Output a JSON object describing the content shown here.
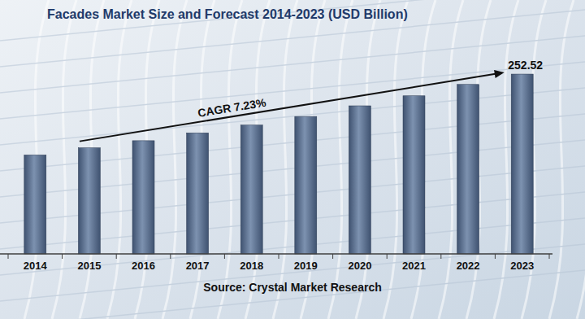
{
  "chart_data": {
    "type": "bar",
    "title": "Facades Market Size and Forecast 2014-2023 (USD Billion)",
    "categories": [
      "2014",
      "2015",
      "2016",
      "2017",
      "2018",
      "2019",
      "2020",
      "2021",
      "2022",
      "2023"
    ],
    "values": [
      139,
      149,
      159,
      170,
      181,
      193,
      208,
      222,
      238,
      252.52
    ],
    "value_labels": [
      null,
      null,
      null,
      null,
      null,
      null,
      null,
      null,
      null,
      "252.52"
    ],
    "data_labels": true,
    "color": "#3f5270",
    "ylim": [
      0,
      300
    ],
    "tick_labels": "x",
    "grid": false,
    "annotations": [
      "CAGR 7.23%",
      "Source: Crystal Market Research"
    ]
  }
}
